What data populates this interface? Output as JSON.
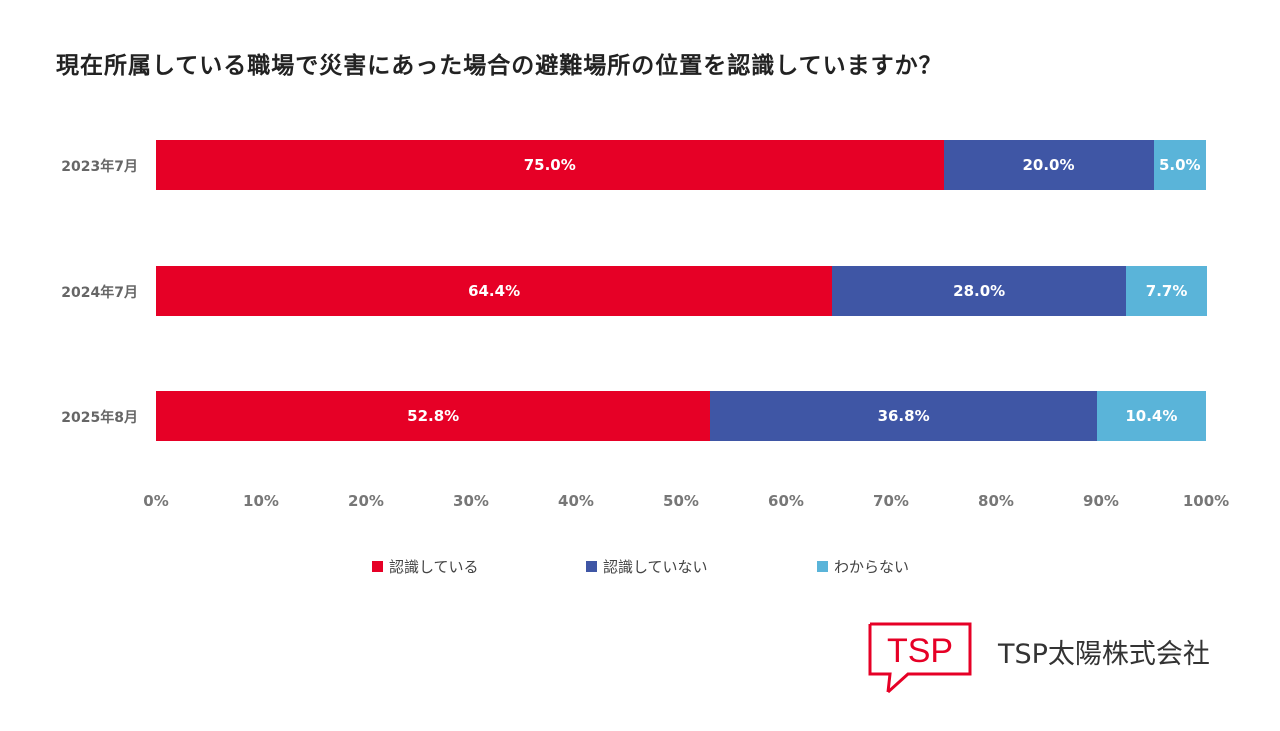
{
  "chart_data": {
    "type": "bar",
    "orientation": "horizontal-stacked-100",
    "title": "現在所属している職場で災害にあった場合の避難場所の位置を認識していますか？",
    "categories": [
      "2023年7月",
      "2024年7月",
      "2025年8月"
    ],
    "series": [
      {
        "name": "認識している",
        "color": "#e60026",
        "values": [
          75.0,
          64.4,
          52.8
        ],
        "labels": [
          "75.0%",
          "64.4%",
          "52.8%"
        ]
      },
      {
        "name": "認識していない",
        "color": "#3f56a5",
        "values": [
          20.0,
          28.0,
          36.8
        ],
        "labels": [
          "20.0%",
          "28.0%",
          "36.8%"
        ]
      },
      {
        "name": "わからない",
        "color": "#5ab4d9",
        "values": [
          5.0,
          7.7,
          10.4
        ],
        "labels": [
          "5.0%",
          "7.7%",
          "10.4%"
        ]
      }
    ],
    "xlim": [
      0,
      100
    ],
    "xticks": [
      "0%",
      "10%",
      "20%",
      "30%",
      "40%",
      "50%",
      "60%",
      "70%",
      "80%",
      "90%",
      "100%"
    ],
    "legend": "bottom",
    "grid": false
  },
  "logo": {
    "mark": "TSP",
    "company": "TSP太陽株式会社"
  }
}
